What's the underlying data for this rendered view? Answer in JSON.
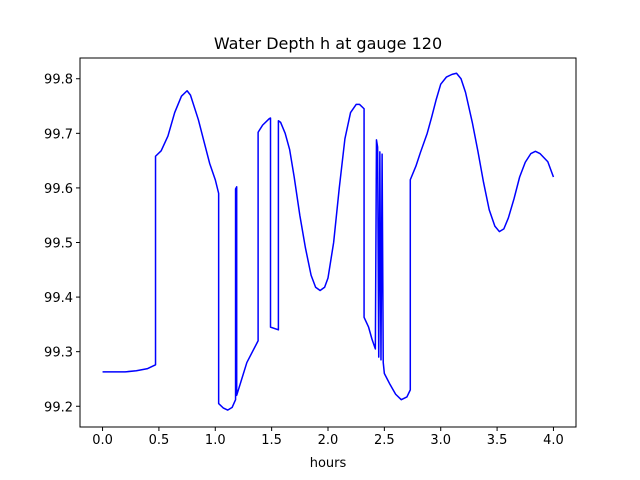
{
  "chart_data": {
    "type": "line",
    "title": "Water Depth h at gauge 120",
    "xlabel": "hours",
    "ylabel": "",
    "xlim": [
      -0.2,
      4.2
    ],
    "ylim": [
      99.162,
      99.838
    ],
    "xticks": [
      0.0,
      0.5,
      1.0,
      1.5,
      2.0,
      2.5,
      3.0,
      3.5,
      4.0
    ],
    "xtick_labels": [
      "0.0",
      "0.5",
      "1.0",
      "1.5",
      "2.0",
      "2.5",
      "3.0",
      "3.5",
      "4.0"
    ],
    "yticks": [
      99.2,
      99.3,
      99.4,
      99.5,
      99.6,
      99.7,
      99.8
    ],
    "ytick_labels": [
      "99.2",
      "99.3",
      "99.4",
      "99.5",
      "99.6",
      "99.7",
      "99.8"
    ],
    "grid": false,
    "legend": "none",
    "series": [
      {
        "color": "#0000ff",
        "points": [
          [
            0.0,
            99.263
          ],
          [
            0.1,
            99.263
          ],
          [
            0.2,
            99.263
          ],
          [
            0.3,
            99.265
          ],
          [
            0.4,
            99.269
          ],
          [
            0.47,
            99.276
          ],
          [
            0.47,
            99.658
          ],
          [
            0.52,
            99.668
          ],
          [
            0.58,
            99.695
          ],
          [
            0.64,
            99.738
          ],
          [
            0.7,
            99.768
          ],
          [
            0.75,
            99.778
          ],
          [
            0.78,
            99.77
          ],
          [
            0.85,
            99.725
          ],
          [
            0.9,
            99.685
          ],
          [
            0.95,
            99.645
          ],
          [
            1.0,
            99.615
          ],
          [
            1.03,
            99.59
          ],
          [
            1.03,
            99.205
          ],
          [
            1.07,
            99.197
          ],
          [
            1.11,
            99.193
          ],
          [
            1.15,
            99.198
          ],
          [
            1.18,
            99.212
          ],
          [
            1.18,
            99.598
          ],
          [
            1.19,
            99.602
          ],
          [
            1.19,
            99.22
          ],
          [
            1.22,
            99.24
          ],
          [
            1.28,
            99.28
          ],
          [
            1.38,
            99.32
          ],
          [
            1.38,
            99.702
          ],
          [
            1.42,
            99.715
          ],
          [
            1.48,
            99.727
          ],
          [
            1.49,
            99.728
          ],
          [
            1.49,
            99.345
          ],
          [
            1.56,
            99.34
          ],
          [
            1.56,
            99.723
          ],
          [
            1.58,
            99.72
          ],
          [
            1.62,
            99.7
          ],
          [
            1.66,
            99.67
          ],
          [
            1.7,
            99.62
          ],
          [
            1.75,
            99.55
          ],
          [
            1.8,
            99.49
          ],
          [
            1.85,
            99.44
          ],
          [
            1.89,
            99.418
          ],
          [
            1.93,
            99.412
          ],
          [
            1.97,
            99.418
          ],
          [
            2.0,
            99.435
          ],
          [
            2.05,
            99.5
          ],
          [
            2.1,
            99.6
          ],
          [
            2.15,
            99.69
          ],
          [
            2.2,
            99.738
          ],
          [
            2.25,
            99.753
          ],
          [
            2.28,
            99.753
          ],
          [
            2.32,
            99.745
          ],
          [
            2.32,
            99.363
          ],
          [
            2.36,
            99.345
          ],
          [
            2.39,
            99.323
          ],
          [
            2.42,
            99.305
          ],
          [
            2.43,
            99.688
          ],
          [
            2.44,
            99.675
          ],
          [
            2.45,
            99.29
          ],
          [
            2.46,
            99.666
          ],
          [
            2.47,
            99.285
          ],
          [
            2.48,
            99.662
          ],
          [
            2.49,
            99.28
          ],
          [
            2.5,
            99.26
          ],
          [
            2.55,
            99.24
          ],
          [
            2.6,
            99.222
          ],
          [
            2.65,
            99.212
          ],
          [
            2.7,
            99.217
          ],
          [
            2.73,
            99.23
          ],
          [
            2.73,
            99.615
          ],
          [
            2.78,
            99.64
          ],
          [
            2.82,
            99.665
          ],
          [
            2.88,
            99.7
          ],
          [
            2.92,
            99.73
          ],
          [
            2.96,
            99.762
          ],
          [
            3.0,
            99.79
          ],
          [
            3.05,
            99.803
          ],
          [
            3.1,
            99.808
          ],
          [
            3.14,
            99.81
          ],
          [
            3.18,
            99.8
          ],
          [
            3.22,
            99.775
          ],
          [
            3.28,
            99.72
          ],
          [
            3.33,
            99.667
          ],
          [
            3.38,
            99.61
          ],
          [
            3.43,
            99.56
          ],
          [
            3.48,
            99.53
          ],
          [
            3.52,
            99.52
          ],
          [
            3.56,
            99.525
          ],
          [
            3.6,
            99.545
          ],
          [
            3.65,
            99.58
          ],
          [
            3.7,
            99.62
          ],
          [
            3.75,
            99.647
          ],
          [
            3.8,
            99.663
          ],
          [
            3.84,
            99.667
          ],
          [
            3.88,
            99.663
          ],
          [
            3.95,
            99.648
          ],
          [
            4.0,
            99.62
          ]
        ]
      }
    ]
  }
}
